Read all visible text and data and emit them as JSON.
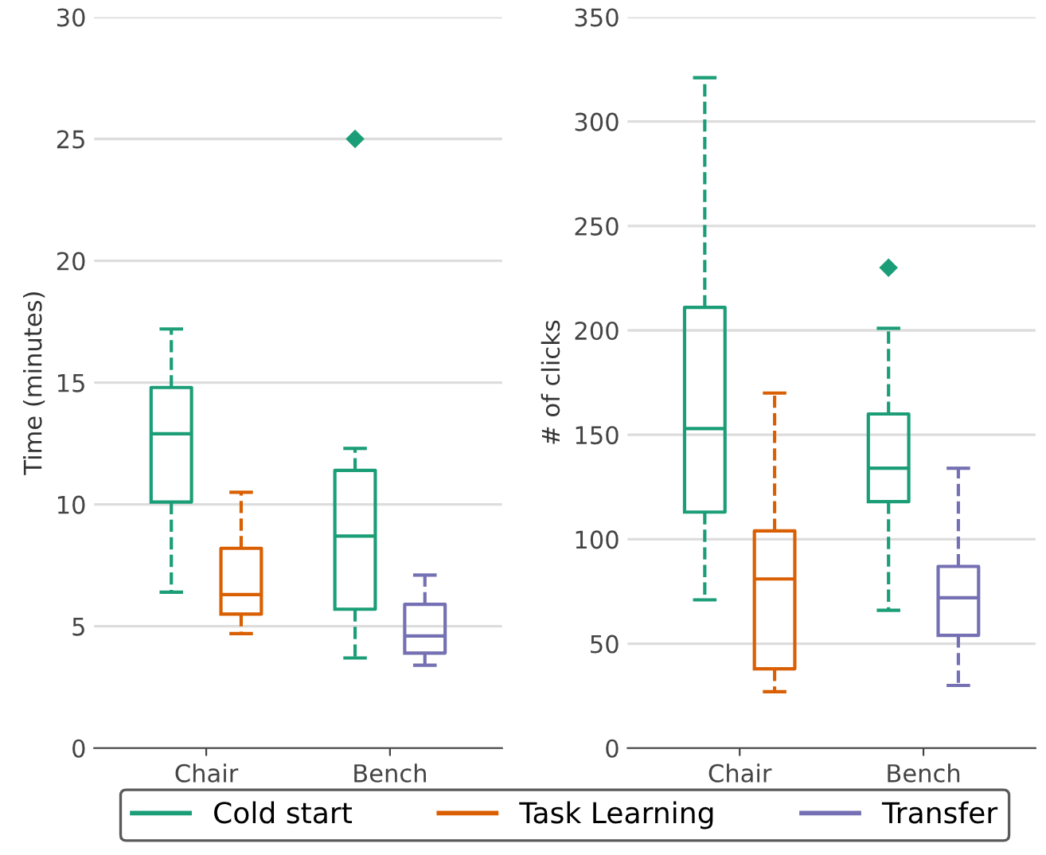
{
  "chart_data": [
    {
      "type": "box",
      "ylabel": "Time (minutes)",
      "categories": [
        "Chair",
        "Bench"
      ],
      "ylim": [
        0,
        30
      ],
      "yticks": [
        0,
        5,
        10,
        15,
        20,
        25,
        30
      ],
      "grid": "y",
      "legend": "bottom",
      "line_style": "dashed",
      "series": [
        {
          "name": "Cold start",
          "color": "#1b9e77",
          "boxes": [
            {
              "low": 6.4,
              "q1": 10.1,
              "median": 12.9,
              "q3": 14.8,
              "high": 17.2
            },
            {
              "low": 3.7,
              "q1": 5.7,
              "median": 8.7,
              "q3": 11.4,
              "high": 12.3,
              "outliers": [
                25
              ]
            }
          ]
        },
        {
          "name": "Task Learning",
          "color": "#d95f02",
          "boxes": [
            {
              "low": 4.7,
              "q1": 5.5,
              "median": 6.3,
              "q3": 8.2,
              "high": 10.5
            },
            null
          ]
        },
        {
          "name": "Transfer",
          "color": "#7570b3",
          "boxes": [
            null,
            {
              "low": 3.4,
              "q1": 3.9,
              "median": 4.6,
              "q3": 5.9,
              "high": 7.1
            }
          ]
        }
      ]
    },
    {
      "type": "box",
      "ylabel": "# of clicks",
      "categories": [
        "Chair",
        "Bench"
      ],
      "ylim": [
        0,
        350
      ],
      "yticks": [
        0,
        50,
        100,
        150,
        200,
        250,
        300,
        350
      ],
      "grid": "y",
      "line_style": "dashed",
      "series": [
        {
          "color": "#1b9e77",
          "boxes": [
            {
              "low": 71,
              "q1": 113,
              "median": 153,
              "q3": 211,
              "high": 321
            },
            {
              "low": 66,
              "q1": 118,
              "median": 134,
              "q3": 160,
              "high": 201,
              "outliers": [
                230
              ]
            }
          ]
        },
        {
          "color": "#d95f02",
          "boxes": [
            {
              "low": 27,
              "q1": 38,
              "median": 81,
              "q3": 104,
              "high": 170
            },
            null
          ]
        },
        {
          "color": "#7570b3",
          "boxes": [
            null,
            {
              "low": 30,
              "q1": 54,
              "median": 72,
              "q3": 87,
              "high": 134
            }
          ]
        }
      ]
    }
  ]
}
